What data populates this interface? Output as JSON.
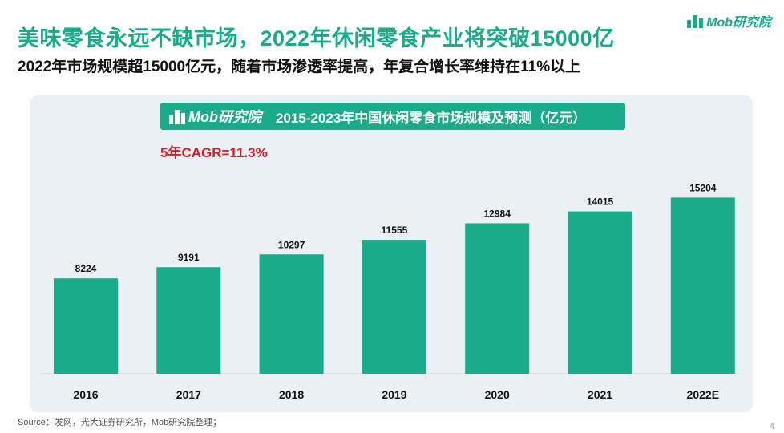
{
  "title": "美味零食永远不缺市场，2022年休闲零食产业将突破15000亿",
  "subtitle": "2022年市场规模超15000亿元，随着市场渗透率提高，年复合增长率维持在11%以上",
  "logo": {
    "text": "Mob研究院"
  },
  "chart_header": {
    "brand": "Mob研究院"
  },
  "annotation": "5年CAGR=11.3%",
  "source": "Source：发网，光大证券研究所，Mob研究院整理；",
  "page_number": "4",
  "colors": {
    "accent": "#1aab8a",
    "annotation": "#d0202a",
    "panel": "#eaf0f3"
  },
  "chart_data": {
    "type": "bar",
    "title": "2015-2023年中国休闲零食市场规模及预测（亿元）",
    "categories": [
      "2016",
      "2017",
      "2018",
      "2019",
      "2020",
      "2021",
      "2022E"
    ],
    "values": [
      8224,
      9191,
      10297,
      11555,
      12984,
      14015,
      15204
    ],
    "ylim": [
      0,
      18000
    ],
    "grid": false,
    "data_labels": true,
    "bar_color": "#1aab8a"
  }
}
